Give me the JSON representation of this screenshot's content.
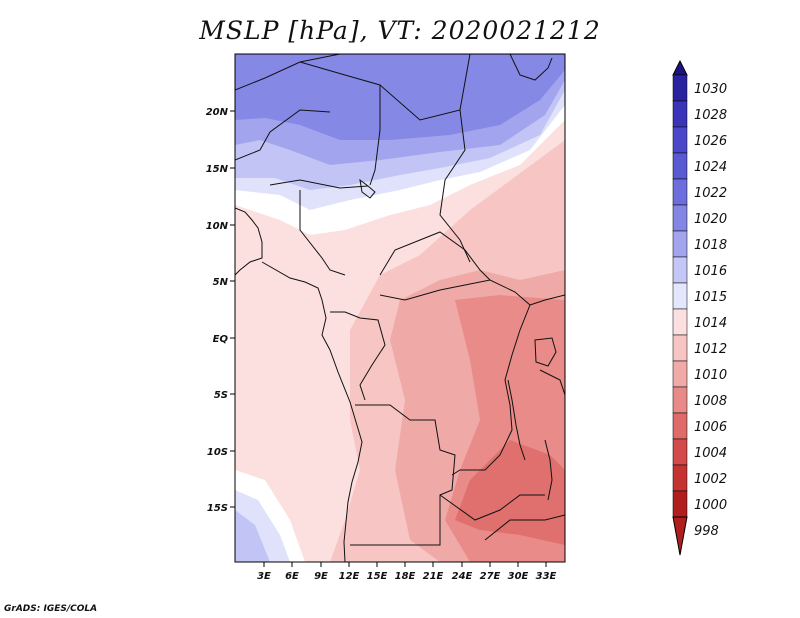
{
  "title": "MSLP [hPa], VT: 2020021212",
  "credit": "GrADS: IGES/COLA",
  "lat_labels": [
    "20N",
    "15N",
    "10N",
    "5N",
    "EQ",
    "5S",
    "10S",
    "15S"
  ],
  "lon_labels": [
    "3E",
    "6E",
    "9E",
    "12E",
    "15E",
    "18E",
    "21E",
    "24E",
    "27E",
    "30E",
    "33E"
  ],
  "colorbar": {
    "labels": [
      "1030",
      "1028",
      "1026",
      "1024",
      "1022",
      "1020",
      "1018",
      "1016",
      "1015",
      "1014",
      "1012",
      "1010",
      "1008",
      "1006",
      "1004",
      "1002",
      "1000",
      "998"
    ],
    "colors": [
      "#1c1482",
      "#2a23a0",
      "#3a35b8",
      "#4a48c8",
      "#5a5ad2",
      "#6c6edc",
      "#8486e6",
      "#a2a4ee",
      "#c4c6f6",
      "#e4e6fc",
      "#fbe0df",
      "#f7c6c4",
      "#f0aaa8",
      "#e88a88",
      "#de6a69",
      "#d24a4a",
      "#c43232",
      "#b01e1e"
    ]
  },
  "map_colors": {
    "p1020": "#8688e6",
    "p1018": "#a2a4ee",
    "p1016": "#c2c4f5",
    "p1015": "#e0e2fb",
    "p1014": "#ffffff",
    "p1012": "#fbe0df",
    "p1010": "#f7c6c4",
    "p1008": "#efaaa8",
    "p1006": "#e88b89",
    "p1004": "#e0706e"
  }
}
